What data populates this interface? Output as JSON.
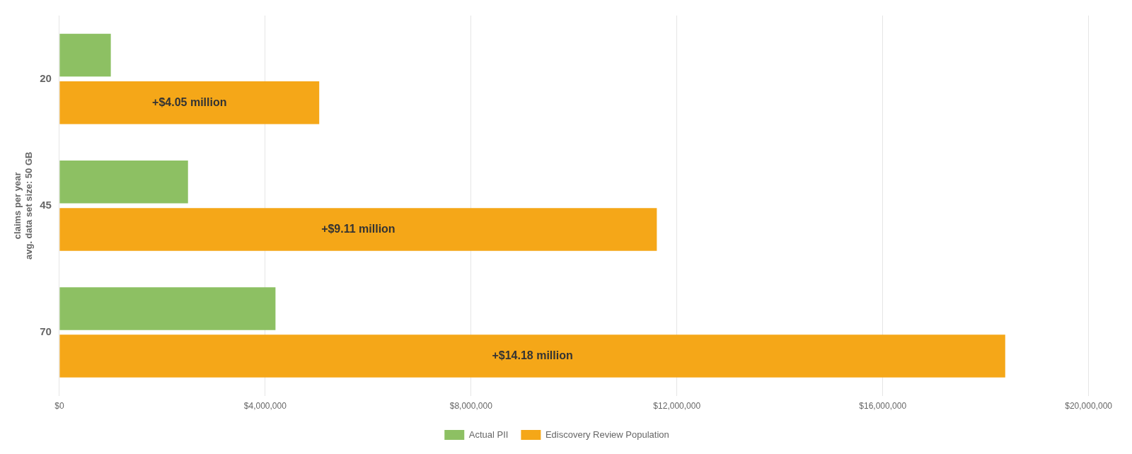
{
  "chart_data": {
    "type": "bar",
    "orientation": "horizontal",
    "categories": [
      "20",
      "45",
      "70"
    ],
    "series": [
      {
        "name": "Actual PII",
        "color": "#8DC063",
        "values": [
          1000000,
          2500000,
          4200000
        ]
      },
      {
        "name": "Ediscovery Review Population",
        "color": "#F5A718",
        "values": [
          5050000,
          11610000,
          18380000
        ],
        "annotations": [
          "+$4.05 million",
          "+$9.11 million",
          "+$14.18 million"
        ]
      }
    ],
    "ylabel": "claims per year\navg. data set size: 50 GB",
    "xlim": [
      0,
      20000000
    ],
    "xticks": [
      {
        "value": 0,
        "label": "$0"
      },
      {
        "value": 4000000,
        "label": "$4,000,000"
      },
      {
        "value": 8000000,
        "label": "$8,000,000"
      },
      {
        "value": 12000000,
        "label": "$12,000,000"
      },
      {
        "value": 16000000,
        "label": "$16,000,000"
      },
      {
        "value": 20000000,
        "label": "$20,000,000"
      }
    ],
    "grid": "x",
    "legend": "bottom"
  }
}
